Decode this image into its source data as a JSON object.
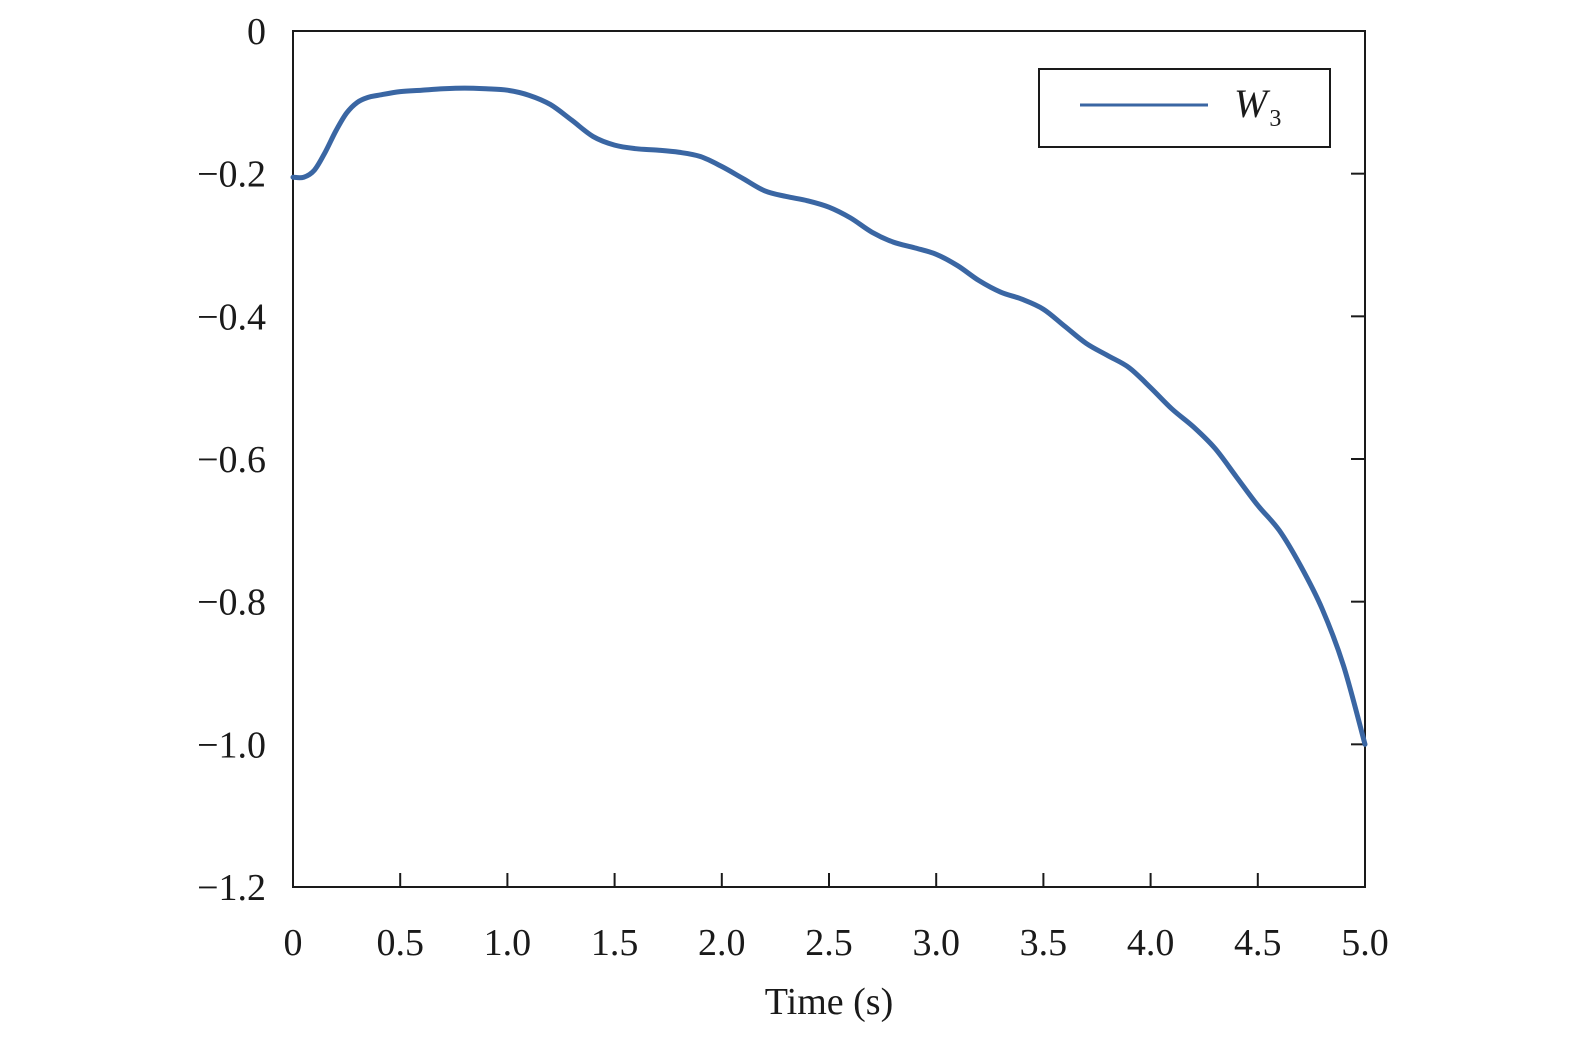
{
  "chart_data": {
    "type": "line",
    "xlabel": "Time (s)",
    "ylabel": "",
    "xlim": [
      0,
      5.0
    ],
    "ylim": [
      -1.2,
      0
    ],
    "xticks": [
      "0",
      "0.5",
      "1.0",
      "1.5",
      "2.0",
      "2.5",
      "3.0",
      "3.5",
      "4.0",
      "4.5",
      "5.0"
    ],
    "yticks": [
      "0",
      "−0.2",
      "−0.4",
      "−0.6",
      "−0.8",
      "−1.0",
      "−1.2"
    ],
    "grid": false,
    "legend_position": "top-right",
    "line_color": "#3a66a3",
    "series": [
      {
        "name": "W",
        "name_subscript": "3",
        "x": [
          0,
          0.05,
          0.1,
          0.15,
          0.2,
          0.25,
          0.3,
          0.35,
          0.4,
          0.5,
          0.6,
          0.7,
          0.8,
          0.9,
          1.0,
          1.1,
          1.2,
          1.3,
          1.4,
          1.5,
          1.6,
          1.7,
          1.8,
          1.9,
          2.0,
          2.1,
          2.2,
          2.3,
          2.4,
          2.5,
          2.6,
          2.7,
          2.8,
          2.9,
          3.0,
          3.1,
          3.2,
          3.3,
          3.4,
          3.5,
          3.6,
          3.7,
          3.8,
          3.9,
          4.0,
          4.1,
          4.2,
          4.3,
          4.4,
          4.5,
          4.6,
          4.7,
          4.8,
          4.9,
          5.0
        ],
        "values": [
          -0.205,
          -0.205,
          -0.195,
          -0.17,
          -0.14,
          -0.115,
          -0.1,
          -0.093,
          -0.09,
          -0.085,
          -0.083,
          -0.081,
          -0.08,
          -0.081,
          -0.083,
          -0.09,
          -0.103,
          -0.125,
          -0.148,
          -0.16,
          -0.165,
          -0.167,
          -0.17,
          -0.176,
          -0.19,
          -0.207,
          -0.224,
          -0.232,
          -0.238,
          -0.247,
          -0.262,
          -0.282,
          -0.296,
          -0.304,
          -0.313,
          -0.329,
          -0.35,
          -0.366,
          -0.376,
          -0.39,
          -0.414,
          -0.438,
          -0.455,
          -0.472,
          -0.5,
          -0.53,
          -0.555,
          -0.585,
          -0.625,
          -0.665,
          -0.7,
          -0.75,
          -0.81,
          -0.89,
          -1.0
        ]
      }
    ]
  }
}
